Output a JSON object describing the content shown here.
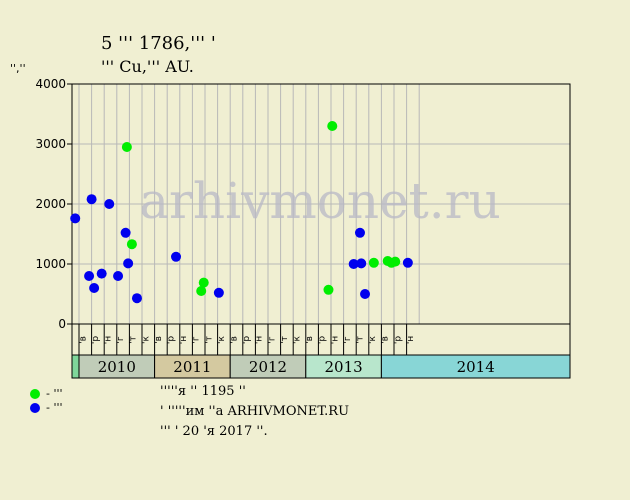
{
  "header": {
    "title_line1": "5 ꞌꞌꞌ 1786,ꞌꞌꞌ ꞌ",
    "title_line2": "ꞌꞌꞌ Cu,ꞌꞌꞌ AU.",
    "unit": "ꞌꞌ,ꞌꞌ"
  },
  "watermark": "arhivmonet.ru",
  "legend": {
    "green_label": "- ꞌꞌꞌ",
    "blue_label": "- ꞌꞌꞌ"
  },
  "notes": {
    "line1": "ꞌꞌꞌꞌꞌя ꞌꞌ 1195 ꞌꞌ",
    "line2": "ꞌ ꞌꞌꞌꞌꞌим ꞌꞌа ARHIVMONET.RU",
    "line3": "ꞌꞌꞌ ꞌ 20 ꞌя 2017 ꞌꞌ."
  },
  "colors": {
    "green": "#00ee00",
    "blue": "#0000ee",
    "plot_bg": "#f0efd2",
    "grid": "#b8b8b8",
    "year_2010": "#c0ccb8",
    "year_2011": "#d4c9a0",
    "year_2012": "#c0ccb8",
    "year_2013": "#b8e6cc",
    "year_2014": "#88d6d6",
    "year_pre": "#7fd69a"
  },
  "chart_data": {
    "type": "scatter",
    "ylim": [
      0,
      4000
    ],
    "yticks": [
      0,
      1000,
      2000,
      3000,
      4000
    ],
    "month_labels": [
      "ꞌв",
      "ꞌр",
      "ꞌн",
      "ꞌг",
      "ꞌт",
      "ꞌк",
      "ꞌв",
      "ꞌр",
      "ꞌн",
      "ꞌг",
      "ꞌт",
      "ꞌк",
      "ꞌв",
      "ꞌр",
      "ꞌн",
      "ꞌг",
      "ꞌт",
      "ꞌк",
      "ꞌв",
      "ꞌр",
      "ꞌн",
      "ꞌг",
      "ꞌт",
      "ꞌк",
      "ꞌв",
      "ꞌр",
      "ꞌн"
    ],
    "years": [
      {
        "label": "",
        "start": -0.5,
        "end": 0
      },
      {
        "label": "2010",
        "start": 0,
        "end": 6
      },
      {
        "label": "2011",
        "start": 6,
        "end": 12
      },
      {
        "label": "2012",
        "start": 12,
        "end": 18
      },
      {
        "label": "2013",
        "start": 18,
        "end": 24
      },
      {
        "label": "2014",
        "start": 24,
        "end": 27
      }
    ],
    "series": [
      {
        "key": "green",
        "points": [
          {
            "x": 3.8,
            "y": 2950
          },
          {
            "x": 4.2,
            "y": 1330
          },
          {
            "x": 9.7,
            "y": 550
          },
          {
            "x": 9.9,
            "y": 690
          },
          {
            "x": 19.8,
            "y": 570
          },
          {
            "x": 20.1,
            "y": 3300
          },
          {
            "x": 23.4,
            "y": 1020
          },
          {
            "x": 24.5,
            "y": 1050
          },
          {
            "x": 24.8,
            "y": 1020
          },
          {
            "x": 25.1,
            "y": 1040
          }
        ]
      },
      {
        "key": "blue",
        "points": [
          {
            "x": -0.3,
            "y": 1760
          },
          {
            "x": 0.8,
            "y": 800
          },
          {
            "x": 1.0,
            "y": 2080
          },
          {
            "x": 1.2,
            "y": 600
          },
          {
            "x": 1.8,
            "y": 840
          },
          {
            "x": 2.4,
            "y": 2000
          },
          {
            "x": 3.1,
            "y": 800
          },
          {
            "x": 3.7,
            "y": 1520
          },
          {
            "x": 3.9,
            "y": 1010
          },
          {
            "x": 4.6,
            "y": 430
          },
          {
            "x": 7.7,
            "y": 1120
          },
          {
            "x": 11.1,
            "y": 520
          },
          {
            "x": 21.8,
            "y": 1000
          },
          {
            "x": 22.3,
            "y": 1520
          },
          {
            "x": 22.4,
            "y": 1010
          },
          {
            "x": 22.7,
            "y": 500
          },
          {
            "x": 26.1,
            "y": 1020
          }
        ]
      }
    ]
  }
}
